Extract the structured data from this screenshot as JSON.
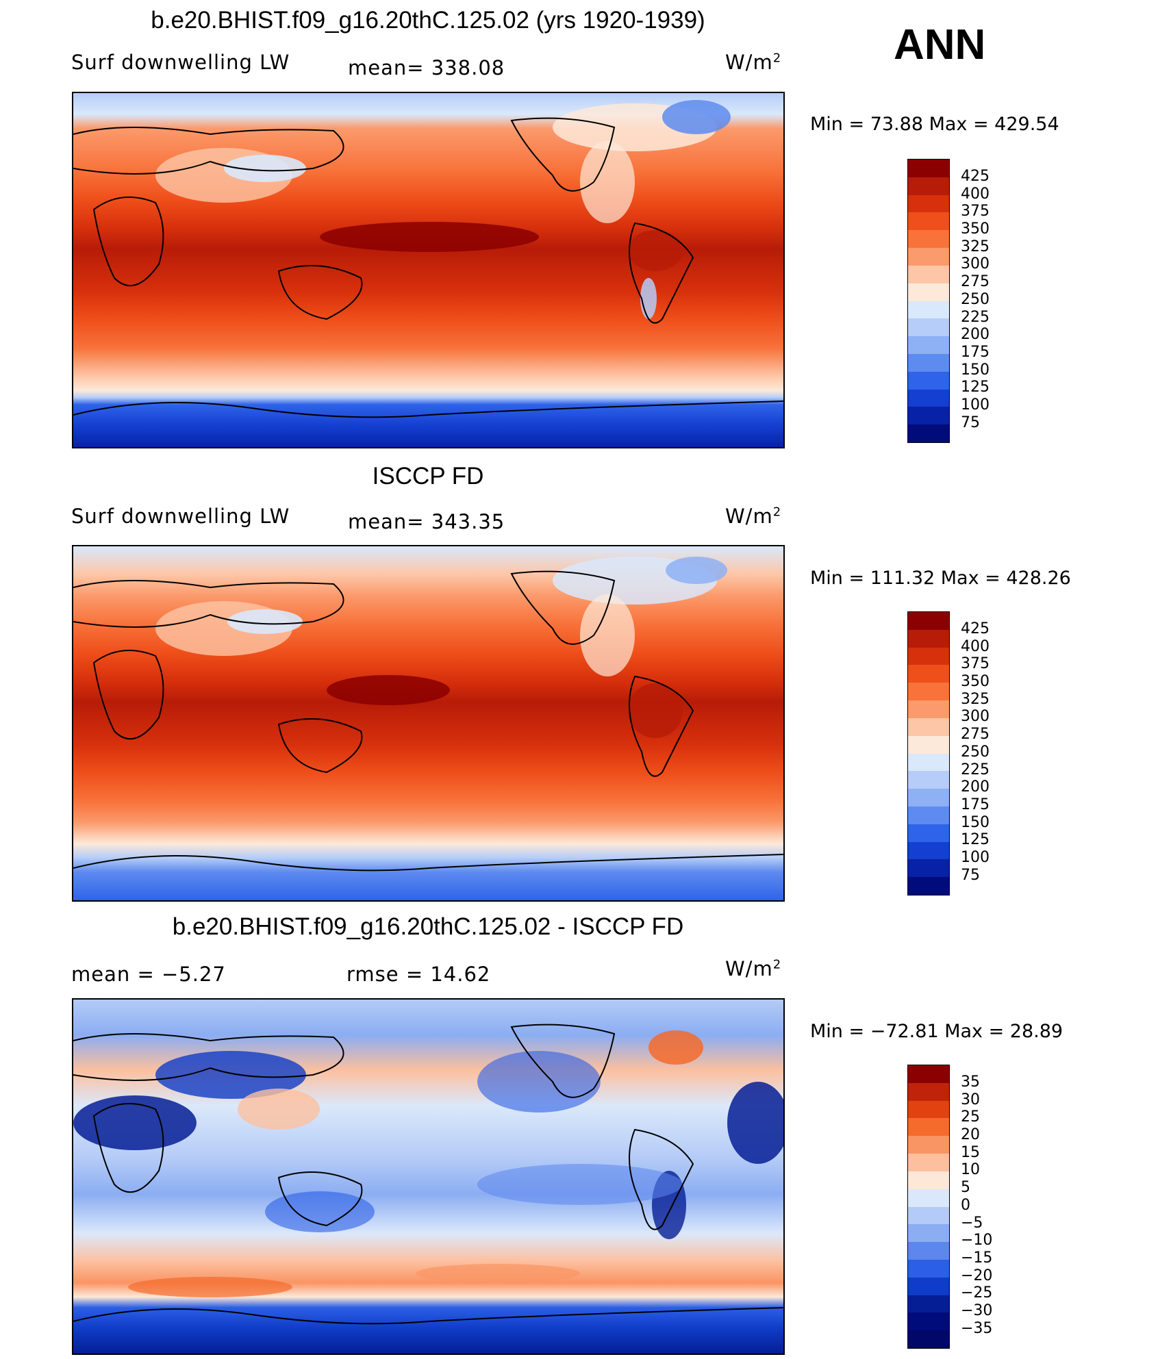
{
  "page": {
    "season": "ANN",
    "units": "W/m",
    "units_exp": "2"
  },
  "panels": [
    {
      "title": "b.e20.BHIST.f09_g16.20thC.125.02 (yrs 1920-1939)",
      "left_label": "Surf downwelling LW",
      "center_label": "mean= 338.08",
      "minmax": "Min =   73.88 Max = 429.54",
      "colorbar_levels": [
        "425",
        "400",
        "375",
        "350",
        "325",
        "300",
        "275",
        "250",
        "225",
        "200",
        "175",
        "150",
        "125",
        "100",
        "75"
      ]
    },
    {
      "title": "ISCCP FD",
      "left_label": "Surf downwelling LW",
      "center_label": "mean= 343.35",
      "minmax": "Min = 111.32 Max = 428.26",
      "colorbar_levels": [
        "425",
        "400",
        "375",
        "350",
        "325",
        "300",
        "275",
        "250",
        "225",
        "200",
        "175",
        "150",
        "125",
        "100",
        "75"
      ]
    },
    {
      "title": "b.e20.BHIST.f09_g16.20thC.125.02 - ISCCP FD",
      "left_label": "mean =   −5.27",
      "center_label": "rmse =   14.62",
      "minmax": "Min = −72.81 Max =  28.89",
      "colorbar_levels": [
        "35",
        "30",
        "25",
        "20",
        "15",
        "10",
        "5",
        "0",
        "−5",
        "−10",
        "−15",
        "−20",
        "−25",
        "−30",
        "−35"
      ]
    }
  ],
  "colors": {
    "scale_abs": [
      "#8b0000",
      "#b71c08",
      "#d7300c",
      "#ef4f1a",
      "#f8723a",
      "#fb9a6c",
      "#fdc6a6",
      "#fde9d9",
      "#d9e8fb",
      "#b5cdf8",
      "#8eb0f4",
      "#5e8bef",
      "#2f63ea",
      "#143fd0",
      "#0722a6",
      "#000c7a"
    ],
    "scale_diff": [
      "#8b0000",
      "#c0230a",
      "#e2420f",
      "#f46b2c",
      "#f99564",
      "#fcc09f",
      "#fde8d8",
      "#dbe8fb",
      "#b4cbf7",
      "#8badf2",
      "#5d87ec",
      "#2c5fe6",
      "#0f3cc8",
      "#061e95",
      "#000c7a"
    ]
  },
  "chart_data": [
    {
      "type": "heatmap",
      "title": "b.e20.BHIST.f09_g16.20thC.125.02 (yrs 1920-1939)",
      "variable": "Surf downwelling LW",
      "units": "W/m2",
      "mean": 338.08,
      "min": 73.88,
      "max": 429.54,
      "levels": [
        75,
        100,
        125,
        150,
        175,
        200,
        225,
        250,
        275,
        300,
        325,
        350,
        375,
        400,
        425
      ]
    },
    {
      "type": "heatmap",
      "title": "ISCCP FD",
      "variable": "Surf downwelling LW",
      "units": "W/m2",
      "mean": 343.35,
      "min": 111.32,
      "max": 428.26,
      "levels": [
        75,
        100,
        125,
        150,
        175,
        200,
        225,
        250,
        275,
        300,
        325,
        350,
        375,
        400,
        425
      ]
    },
    {
      "type": "heatmap",
      "title": "b.e20.BHIST.f09_g16.20thC.125.02 - ISCCP FD",
      "units": "W/m2",
      "mean": -5.27,
      "rmse": 14.62,
      "min": -72.81,
      "max": 28.89,
      "levels": [
        -35,
        -30,
        -25,
        -20,
        -15,
        -10,
        -5,
        0,
        5,
        10,
        15,
        20,
        25,
        30,
        35
      ]
    }
  ]
}
